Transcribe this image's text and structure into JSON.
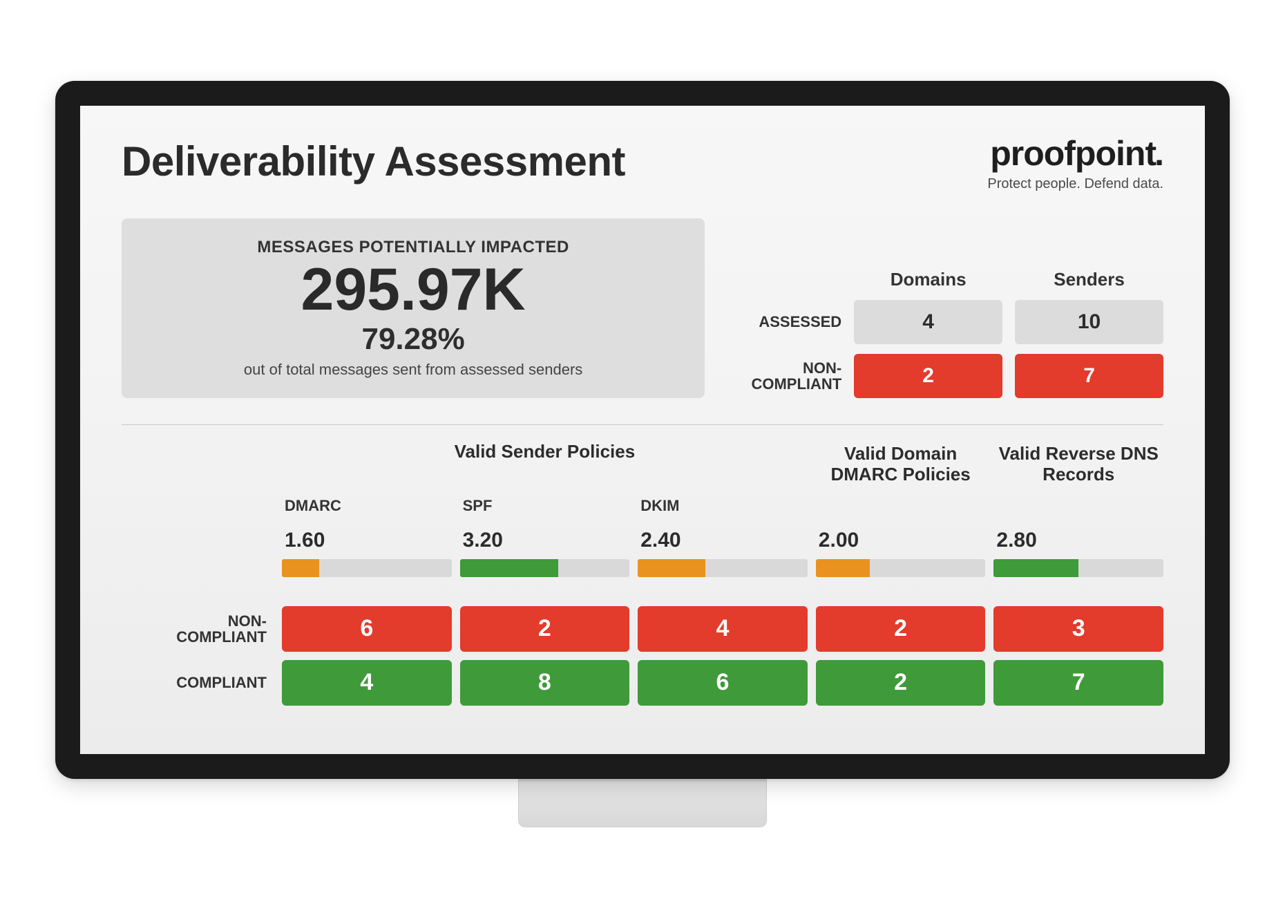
{
  "colors": {
    "red": "#e33b2c",
    "green": "#3f9a3a",
    "orange": "#e9921f",
    "grey_cell": "#dcdcdc",
    "bar_track": "#d9d9d9",
    "card_bg": "#dedede",
    "text": "#2b2b2b"
  },
  "page_title": "Deliverability Assessment",
  "brand": {
    "name": "proofpoint",
    "dot": ".",
    "tag": "Protect people. Defend data."
  },
  "impact": {
    "label": "MESSAGES POTENTIALLY IMPACTED",
    "value": "295.97K",
    "percent": "79.28%",
    "subtext": "out of total messages sent from assessed senders"
  },
  "summary": {
    "col1": "Domains",
    "col2": "Senders",
    "rows": {
      "assessed": {
        "label": "ASSESSED",
        "domains": "4",
        "senders": "10"
      },
      "noncompliant": {
        "label": "NON-\nCOMPLIANT",
        "domains": "2",
        "senders": "7"
      }
    }
  },
  "policies": {
    "section_heads": {
      "valid_sender": "Valid Sender Policies",
      "valid_domain": "Valid Domain DMARC Policies",
      "valid_rdns": "Valid Reverse DNS Records"
    },
    "row_labels": {
      "noncompliant": "NON-\nCOMPLIANT",
      "compliant": "COMPLIANT"
    },
    "cols": [
      {
        "key": "dmarc",
        "sub": "DMARC",
        "score": "1.60",
        "bar_pct": 22,
        "bar_color": "#e9921f",
        "non": "6",
        "comp": "4"
      },
      {
        "key": "spf",
        "sub": "SPF",
        "score": "3.20",
        "bar_pct": 58,
        "bar_color": "#3f9a3a",
        "non": "2",
        "comp": "8"
      },
      {
        "key": "dkim",
        "sub": "DKIM",
        "score": "2.40",
        "bar_pct": 40,
        "bar_color": "#e9921f",
        "non": "4",
        "comp": "6"
      },
      {
        "key": "vdom",
        "sub": "",
        "score": "2.00",
        "bar_pct": 32,
        "bar_color": "#e9921f",
        "non": "2",
        "comp": "2"
      },
      {
        "key": "rdns",
        "sub": "",
        "score": "2.80",
        "bar_pct": 50,
        "bar_color": "#3f9a3a",
        "non": "3",
        "comp": "7"
      }
    ]
  }
}
